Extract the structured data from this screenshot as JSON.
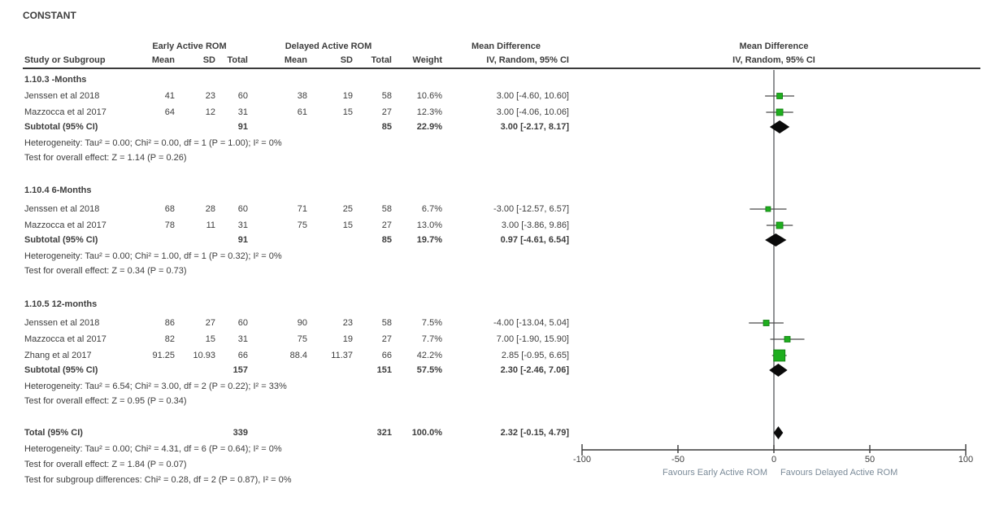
{
  "title": "CONSTANT",
  "columns": {
    "study": "Study or Subgroup",
    "mean": "Mean",
    "sd": "SD",
    "total": "Total",
    "weight": "Weight",
    "group1": "Early Active ROM",
    "group2": "Delayed Active ROM",
    "effect": "Mean Difference",
    "effect_sub": "IV, Random, 95% CI"
  },
  "subgroups": [
    {
      "name": "1.10.3 -Months",
      "studies": [
        {
          "study": "Jenssen et al 2018",
          "mean1": "41",
          "sd1": "23",
          "total1": "60",
          "mean2": "38",
          "sd2": "19",
          "total2": "58",
          "weight": "10.6%",
          "ci": "3.00 [-4.60, 10.60]"
        },
        {
          "study": "Mazzocca et al 2017",
          "mean1": "64",
          "sd1": "12",
          "total1": "31",
          "mean2": "61",
          "sd2": "15",
          "total2": "27",
          "weight": "12.3%",
          "ci": "3.00 [-4.06, 10.06]"
        }
      ],
      "subtotal": {
        "label": "Subtotal (95% CI)",
        "total1": "91",
        "total2": "85",
        "weight": "22.9%",
        "ci": "3.00 [-2.17, 8.17]"
      },
      "heterogeneity": "Heterogeneity: Tau² = 0.00; Chi² = 0.00, df = 1 (P = 1.00); I² = 0%",
      "overall_test": "Test for overall effect: Z = 1.14 (P = 0.26)"
    },
    {
      "name": "1.10.4 6-Months",
      "studies": [
        {
          "study": "Jenssen et al 2018",
          "mean1": "68",
          "sd1": "28",
          "total1": "60",
          "mean2": "71",
          "sd2": "25",
          "total2": "58",
          "weight": "6.7%",
          "ci": "-3.00 [-12.57, 6.57]"
        },
        {
          "study": "Mazzocca et al 2017",
          "mean1": "78",
          "sd1": "11",
          "total1": "31",
          "mean2": "75",
          "sd2": "15",
          "total2": "27",
          "weight": "13.0%",
          "ci": "3.00 [-3.86, 9.86]"
        }
      ],
      "subtotal": {
        "label": "Subtotal (95% CI)",
        "total1": "91",
        "total2": "85",
        "weight": "19.7%",
        "ci": "0.97 [-4.61, 6.54]"
      },
      "heterogeneity": "Heterogeneity: Tau² = 0.00; Chi² = 1.00, df = 1 (P = 0.32); I² = 0%",
      "overall_test": "Test for overall effect: Z = 0.34 (P = 0.73)"
    },
    {
      "name": "1.10.5 12-months",
      "studies": [
        {
          "study": "Jenssen et al 2018",
          "mean1": "86",
          "sd1": "27",
          "total1": "60",
          "mean2": "90",
          "sd2": "23",
          "total2": "58",
          "weight": "7.5%",
          "ci": "-4.00 [-13.04, 5.04]"
        },
        {
          "study": "Mazzocca et al 2017",
          "mean1": "82",
          "sd1": "15",
          "total1": "31",
          "mean2": "75",
          "sd2": "19",
          "total2": "27",
          "weight": "7.7%",
          "ci": "7.00 [-1.90, 15.90]"
        },
        {
          "study": "Zhang et al 2017",
          "mean1": "91.25",
          "sd1": "10.93",
          "total1": "66",
          "mean2": "88.4",
          "sd2": "11.37",
          "total2": "66",
          "weight": "42.2%",
          "ci": "2.85 [-0.95, 6.65]"
        }
      ],
      "subtotal": {
        "label": "Subtotal (95% CI)",
        "total1": "157",
        "total2": "151",
        "weight": "57.5%",
        "ci": "2.30 [-2.46, 7.06]"
      },
      "heterogeneity": "Heterogeneity: Tau² = 6.54; Chi² = 3.00, df = 2 (P = 0.22); I² = 33%",
      "overall_test": "Test for overall effect: Z = 0.95 (P = 0.34)"
    }
  ],
  "total": {
    "label": "Total (95% CI)",
    "total1": "339",
    "total2": "321",
    "weight": "100.0%",
    "ci": "2.32 [-0.15, 4.79]",
    "heterogeneity": "Heterogeneity: Tau² = 0.00; Chi² = 4.31, df = 6 (P = 0.64); I² = 0%",
    "overall_test": "Test for overall effect: Z = 1.84 (P = 0.07)",
    "subgroup_diff": "Test for subgroup differences: Chi² = 0.28, df = 2 (P = 0.87), I² = 0%"
  },
  "axis": {
    "labels": [
      "-100",
      "-50",
      "0",
      "50",
      "100"
    ],
    "favours_left": "Favours Early Active ROM",
    "favours_right": "Favours Delayed Active ROM"
  },
  "colors": {
    "text": "#3d3d3d",
    "line": "#3a3a3a",
    "ci_line": "#4a4a4a",
    "marker_green": "#1fae1f",
    "marker_green_border": "#0e7a0e",
    "diamond_black": "#0a0a0a",
    "favours_text": "#7b8b99"
  },
  "chart_data": {
    "type": "forest",
    "title": "CONSTANT",
    "effect_measure": "Mean Difference  IV, Random, 95% CI",
    "xlim": [
      -100,
      100
    ],
    "xticks": [
      -100,
      -50,
      0,
      50,
      100
    ],
    "xlabel_left": "Favours Early Active ROM",
    "xlabel_right": "Favours Delayed Active ROM",
    "subgroups": [
      {
        "name": "1.10.3 -Months",
        "studies": [
          {
            "label": "Jenssen et al 2018",
            "md": 3.0,
            "lo": -4.6,
            "hi": 10.6,
            "weight_pct": 10.6
          },
          {
            "label": "Mazzocca et al 2017",
            "md": 3.0,
            "lo": -4.06,
            "hi": 10.06,
            "weight_pct": 12.3
          }
        ],
        "pooled": {
          "md": 3.0,
          "lo": -2.17,
          "hi": 8.17,
          "weight_pct": 22.9,
          "i2": "0%",
          "z": 1.14,
          "p": 0.26
        }
      },
      {
        "name": "1.10.4 6-Months",
        "studies": [
          {
            "label": "Jenssen et al 2018",
            "md": -3.0,
            "lo": -12.57,
            "hi": 6.57,
            "weight_pct": 6.7
          },
          {
            "label": "Mazzocca et al 2017",
            "md": 3.0,
            "lo": -3.86,
            "hi": 9.86,
            "weight_pct": 13.0
          }
        ],
        "pooled": {
          "md": 0.97,
          "lo": -4.61,
          "hi": 6.54,
          "weight_pct": 19.7,
          "i2": "0%",
          "z": 0.34,
          "p": 0.73
        }
      },
      {
        "name": "1.10.5 12-months",
        "studies": [
          {
            "label": "Jenssen et al 2018",
            "md": -4.0,
            "lo": -13.04,
            "hi": 5.04,
            "weight_pct": 7.5
          },
          {
            "label": "Mazzocca et al 2017",
            "md": 7.0,
            "lo": -1.9,
            "hi": 15.9,
            "weight_pct": 7.7
          },
          {
            "label": "Zhang et al 2017",
            "md": 2.85,
            "lo": -0.95,
            "hi": 6.65,
            "weight_pct": 42.2
          }
        ],
        "pooled": {
          "md": 2.3,
          "lo": -2.46,
          "hi": 7.06,
          "weight_pct": 57.5,
          "i2": "33%",
          "z": 0.95,
          "p": 0.34
        }
      }
    ],
    "overall": {
      "md": 2.32,
      "lo": -0.15,
      "hi": 4.79,
      "weight_pct": 100.0,
      "i2": "0%",
      "z": 1.84,
      "p": 0.07
    }
  }
}
